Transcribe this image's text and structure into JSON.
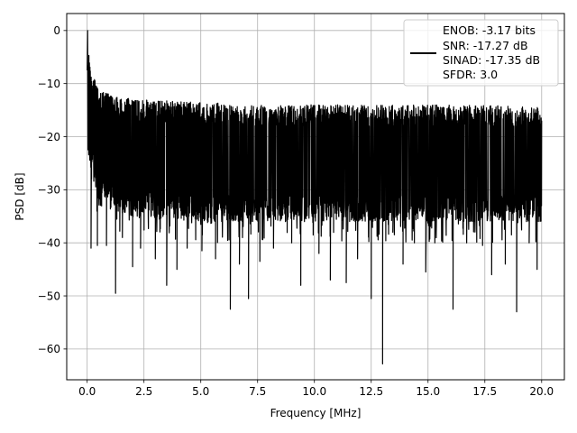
{
  "chart_data": {
    "type": "line",
    "xlabel": "Frequency [MHz]",
    "ylabel": "PSD [dB]",
    "xlim": [
      -0.9,
      21.0
    ],
    "ylim": [
      -65.8,
      3.2
    ],
    "xticks": [
      0.0,
      2.5,
      5.0,
      7.5,
      10.0,
      12.5,
      15.0,
      17.5,
      20.0
    ],
    "xtick_labels": [
      "0.0",
      "2.5",
      "5.0",
      "7.5",
      "10.0",
      "12.5",
      "15.0",
      "17.5",
      "20.0"
    ],
    "yticks": [
      0,
      -10,
      -20,
      -30,
      -40,
      -50,
      -60
    ],
    "ytick_labels": [
      "0",
      "−10",
      "−20",
      "−30",
      "−40",
      "−50",
      "−60"
    ],
    "grid": true,
    "legend_position": "top-right",
    "legend": {
      "lines": [
        "ENOB: -3.17 bits",
        "SNR: -17.27 dB",
        "SINAD: -17.35 dB",
        "SFDR: 3.0"
      ]
    },
    "series": [
      {
        "color": "#000000",
        "peak": {
          "x": 0.02,
          "y": 0.0
        },
        "band_upper": [
          [
            0.05,
            -3
          ],
          [
            0.2,
            -8
          ],
          [
            0.5,
            -11
          ],
          [
            1.0,
            -12
          ],
          [
            2.0,
            -13
          ],
          [
            5.0,
            -13.5
          ],
          [
            7.5,
            -14
          ],
          [
            10.0,
            -14
          ],
          [
            12.5,
            -14
          ],
          [
            15.0,
            -14
          ],
          [
            17.5,
            -14
          ],
          [
            20.0,
            -14.5
          ]
        ],
        "band_lower": [
          [
            0.05,
            -24
          ],
          [
            0.5,
            -33
          ],
          [
            2.0,
            -35
          ],
          [
            5.0,
            -36
          ],
          [
            10.0,
            -36
          ],
          [
            15.0,
            -36
          ],
          [
            20.0,
            -36
          ]
        ],
        "deep_dips": [
          {
            "x": 0.17,
            "y": -41
          },
          {
            "x": 0.45,
            "y": -40.5
          },
          {
            "x": 0.85,
            "y": -40.5
          },
          {
            "x": 1.25,
            "y": -49.5
          },
          {
            "x": 1.55,
            "y": -39
          },
          {
            "x": 2.0,
            "y": -44.5
          },
          {
            "x": 2.35,
            "y": -41
          },
          {
            "x": 3.0,
            "y": -43
          },
          {
            "x": 3.5,
            "y": -48
          },
          {
            "x": 3.95,
            "y": -45
          },
          {
            "x": 4.4,
            "y": -41
          },
          {
            "x": 5.05,
            "y": -41.5
          },
          {
            "x": 5.65,
            "y": -43
          },
          {
            "x": 6.3,
            "y": -52.5
          },
          {
            "x": 6.7,
            "y": -44
          },
          {
            "x": 7.1,
            "y": -50.5
          },
          {
            "x": 7.6,
            "y": -43.5
          },
          {
            "x": 8.2,
            "y": -41
          },
          {
            "x": 9.0,
            "y": -40
          },
          {
            "x": 9.4,
            "y": -48
          },
          {
            "x": 10.2,
            "y": -42
          },
          {
            "x": 10.7,
            "y": -47
          },
          {
            "x": 11.4,
            "y": -47.5
          },
          {
            "x": 11.9,
            "y": -43
          },
          {
            "x": 12.5,
            "y": -50.5
          },
          {
            "x": 13.0,
            "y": -62.8
          },
          {
            "x": 13.45,
            "y": -38
          },
          {
            "x": 13.9,
            "y": -44
          },
          {
            "x": 14.4,
            "y": -40
          },
          {
            "x": 14.9,
            "y": -45.5
          },
          {
            "x": 15.3,
            "y": -40
          },
          {
            "x": 16.1,
            "y": -52.5
          },
          {
            "x": 16.7,
            "y": -40
          },
          {
            "x": 17.4,
            "y": -40.5
          },
          {
            "x": 17.8,
            "y": -46
          },
          {
            "x": 18.4,
            "y": -44
          },
          {
            "x": 18.9,
            "y": -53
          },
          {
            "x": 19.45,
            "y": -40
          },
          {
            "x": 19.8,
            "y": -45
          }
        ]
      }
    ]
  }
}
